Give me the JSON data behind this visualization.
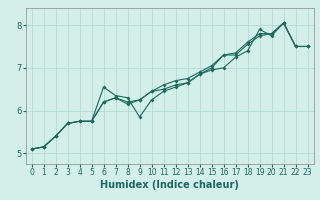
{
  "title": "",
  "xlabel": "Humidex (Indice chaleur)",
  "xlim": [
    -0.5,
    23.5
  ],
  "ylim": [
    4.75,
    8.4
  ],
  "xticks": [
    0,
    1,
    2,
    3,
    4,
    5,
    6,
    7,
    8,
    9,
    10,
    11,
    12,
    13,
    14,
    15,
    16,
    17,
    18,
    19,
    20,
    21,
    22,
    23
  ],
  "yticks": [
    5,
    6,
    7,
    8
  ],
  "background_color": "#d4eeea",
  "grid_color": "#b0d8d0",
  "line_color": "#1a6b5a",
  "line1_x": [
    0,
    1,
    2,
    3,
    4,
    5,
    6,
    7,
    8,
    9,
    10,
    11,
    12,
    13,
    14,
    15,
    16,
    17,
    18,
    19,
    20,
    21,
    22,
    23
  ],
  "line1_y": [
    5.1,
    5.15,
    5.4,
    5.7,
    5.75,
    5.75,
    6.55,
    6.35,
    6.3,
    5.85,
    6.25,
    6.45,
    6.55,
    6.65,
    6.85,
    6.95,
    7.0,
    7.25,
    7.4,
    7.9,
    7.75,
    8.05,
    7.5,
    7.5
  ],
  "line2_x": [
    0,
    1,
    2,
    3,
    4,
    5,
    6,
    7,
    8,
    9,
    10,
    11,
    12,
    13,
    14,
    15,
    16,
    17,
    18,
    19,
    20,
    21,
    22,
    23
  ],
  "line2_y": [
    5.1,
    5.15,
    5.4,
    5.7,
    5.75,
    5.75,
    6.2,
    6.3,
    6.15,
    6.25,
    6.45,
    6.6,
    6.7,
    6.75,
    6.9,
    7.05,
    7.3,
    7.3,
    7.55,
    7.75,
    7.8,
    8.05,
    7.5,
    7.5
  ],
  "line3_x": [
    0,
    1,
    2,
    3,
    4,
    5,
    6,
    7,
    8,
    9,
    10,
    11,
    12,
    13,
    14,
    15,
    16,
    17,
    18,
    19,
    20,
    21,
    22,
    23
  ],
  "line3_y": [
    5.1,
    5.15,
    5.4,
    5.7,
    5.75,
    5.75,
    6.2,
    6.3,
    6.2,
    6.25,
    6.45,
    6.5,
    6.6,
    6.65,
    6.85,
    7.0,
    7.3,
    7.35,
    7.6,
    7.8,
    7.8,
    8.05,
    7.5,
    7.5
  ]
}
